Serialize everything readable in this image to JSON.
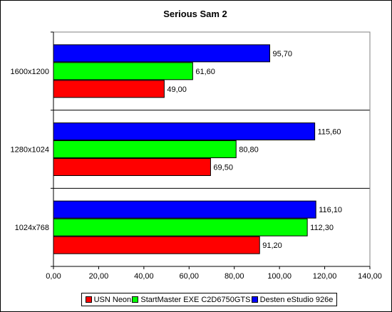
{
  "chart_data": {
    "type": "bar",
    "orientation": "horizontal",
    "title": "Serious Sam 2",
    "categories": [
      "1600x1200",
      "1280x1024",
      "1024x768"
    ],
    "series": [
      {
        "name": "Desten eStudio 926e",
        "color": "#0000ff",
        "values": [
          95.7,
          115.6,
          116.1
        ],
        "labels": [
          "95,70",
          "115,60",
          "116,10"
        ]
      },
      {
        "name": "StartMaster EXE C2D6750GTS",
        "color": "#00ff00",
        "values": [
          61.6,
          80.8,
          112.3
        ],
        "labels": [
          "61,60",
          "80,80",
          "112,30"
        ]
      },
      {
        "name": "USN Neon",
        "color": "#ff0000",
        "values": [
          49.0,
          69.5,
          91.2
        ],
        "labels": [
          "49,00",
          "69,50",
          "91,20"
        ]
      }
    ],
    "xlim": [
      0,
      140
    ],
    "xticks": [
      0,
      20,
      40,
      60,
      80,
      100,
      120,
      140
    ],
    "xtick_labels": [
      "0,00",
      "20,00",
      "40,00",
      "60,00",
      "80,00",
      "100,00",
      "120,00",
      "140,00"
    ],
    "legend_order": [
      "USN Neon",
      "StartMaster EXE C2D6750GTS",
      "Desten eStudio 926e"
    ],
    "legend_placement": "bottom",
    "xlabel": "",
    "ylabel": ""
  }
}
